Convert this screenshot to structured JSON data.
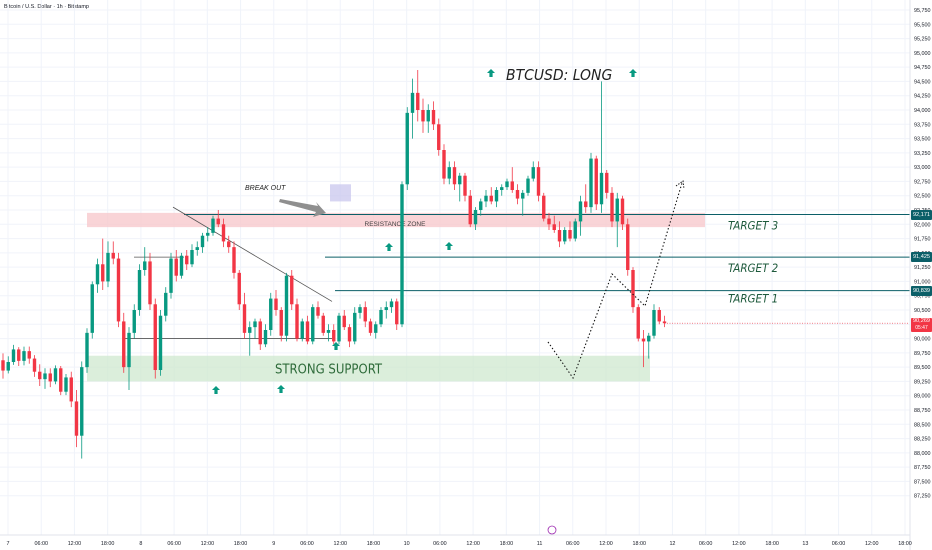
{
  "header": {
    "symbol_line": "Bitcoin / U.S. Dollar · 1h · Bitstamp"
  },
  "colors": {
    "up": "#089981",
    "down": "#f23645",
    "grid": "#f0f3fa",
    "axis_text": "#131722",
    "line": "#0b5f68",
    "support": "#cfe8cf",
    "resistance": "#f7c9cd"
  },
  "chart_data": {
    "type": "candlestick",
    "title": "BTCUSD: LONG",
    "ylim": [
      87000,
      95750
    ],
    "x_tick_labels": [
      "7",
      "06:00",
      "12:00",
      "18:00",
      "8",
      "06:00",
      "12:00",
      "18:00",
      "9",
      "06:00",
      "12:00",
      "18:00",
      "10",
      "06:00",
      "12:00",
      "18:00",
      "11",
      "06:00",
      "12:00",
      "18:00",
      "12",
      "06:00",
      "12:00",
      "18:00",
      "13",
      "06:00",
      "12:00",
      "18:00"
    ],
    "y_tick_values": [
      87250,
      87500,
      87750,
      88000,
      88250,
      88500,
      88750,
      89000,
      89250,
      89500,
      89750,
      90000,
      90250,
      90500,
      90750,
      91000,
      91250,
      91500,
      91750,
      92000,
      92250,
      92500,
      92750,
      93000,
      93250,
      93500,
      93750,
      94000,
      94250,
      94500,
      94750,
      95000,
      95250,
      95500,
      95750
    ],
    "y_tick_labels": [
      "87,250",
      "87,500",
      "87,750",
      "88,000",
      "88,250",
      "88,500",
      "88,750",
      "89,000",
      "89,250",
      "89,500",
      "89,750",
      "90,000",
      "90,250",
      "90,500",
      "90,750",
      "91,000",
      "91,250",
      "91,500",
      "91,750",
      "92,000",
      "92,250",
      "92,500",
      "92,750",
      "93,000",
      "93,250",
      "93,500",
      "93,750",
      "94,000",
      "94,250",
      "94,500",
      "94,750",
      "95,000",
      "95,250",
      "95,500",
      "95,750"
    ],
    "target_levels": [
      {
        "label": "TARGET 3",
        "price": 92171,
        "tag": "92,171"
      },
      {
        "label": "TARGET 2",
        "price": 91425,
        "tag": "91,425"
      },
      {
        "label": "TARGET 1",
        "price": 90839,
        "tag": "90,839"
      }
    ],
    "current_price": {
      "price": 90269,
      "tag": "90,269",
      "countdown": "05:47"
    },
    "zones": [
      {
        "label": "STRONG SUPPORT",
        "from": 89250,
        "to": 89700,
        "x_from": 0,
        "x_to": 189
      },
      {
        "label": "RESISTANCE ZONE",
        "from": 91950,
        "to": 92200,
        "x_from": 0,
        "x_to": 203
      }
    ],
    "annotations": {
      "breakout": "BREAK OUT"
    },
    "candles": [
      [
        89620,
        89740,
        89300,
        89440
      ],
      [
        89440,
        89690,
        89390,
        89590
      ],
      [
        89590,
        89890,
        89540,
        89810
      ],
      [
        89810,
        89850,
        89520,
        89610
      ],
      [
        89610,
        89860,
        89530,
        89780
      ],
      [
        89780,
        89860,
        89560,
        89650
      ],
      [
        89650,
        89710,
        89330,
        89420
      ],
      [
        89420,
        89550,
        89170,
        89290
      ],
      [
        89290,
        89480,
        89120,
        89390
      ],
      [
        89390,
        89480,
        89150,
        89250
      ],
      [
        89250,
        89530,
        89200,
        89480
      ],
      [
        89480,
        89520,
        89010,
        89070
      ],
      [
        89070,
        89380,
        89010,
        89320
      ],
      [
        89320,
        89420,
        88800,
        88900
      ],
      [
        88900,
        89100,
        88100,
        88300
      ],
      [
        88300,
        89600,
        87900,
        89500
      ],
      [
        89500,
        90180,
        89400,
        90100
      ],
      [
        90100,
        91000,
        90000,
        90950
      ],
      [
        90950,
        91400,
        90800,
        91300
      ],
      [
        91300,
        91750,
        90850,
        91000
      ],
      [
        91000,
        91700,
        90900,
        91500
      ],
      [
        91500,
        91700,
        91300,
        91400
      ],
      [
        91400,
        91500,
        90200,
        90300
      ],
      [
        90300,
        90450,
        89400,
        89500
      ],
      [
        89500,
        90200,
        89100,
        90100
      ],
      [
        90100,
        90600,
        90000,
        90500
      ],
      [
        90500,
        91300,
        90400,
        91200
      ],
      [
        91200,
        91600,
        91100,
        91350
      ],
      [
        91350,
        91500,
        90500,
        90600
      ],
      [
        90600,
        90700,
        89300,
        89450
      ],
      [
        89450,
        90500,
        89350,
        90400
      ],
      [
        90400,
        90900,
        90300,
        90800
      ],
      [
        90800,
        91500,
        90700,
        91400
      ],
      [
        91400,
        91550,
        91000,
        91100
      ],
      [
        91100,
        91500,
        91050,
        91450
      ],
      [
        91450,
        91550,
        91200,
        91300
      ],
      [
        91300,
        91650,
        91250,
        91550
      ],
      [
        91550,
        91700,
        91450,
        91600
      ],
      [
        91600,
        91850,
        91500,
        91800
      ],
      [
        91800,
        91950,
        91700,
        91850
      ],
      [
        91850,
        92150,
        91800,
        92100
      ],
      [
        92100,
        92250,
        91950,
        92000
      ],
      [
        92000,
        92100,
        91600,
        91700
      ],
      [
        91700,
        91800,
        91500,
        91600
      ],
      [
        91600,
        91700,
        91050,
        91150
      ],
      [
        91150,
        91200,
        90500,
        90600
      ],
      [
        90600,
        90800,
        90000,
        90100
      ],
      [
        90100,
        90300,
        89700,
        90200
      ],
      [
        90200,
        90350,
        90000,
        90300
      ],
      [
        90300,
        90350,
        89800,
        89900
      ],
      [
        89900,
        90250,
        89850,
        90150
      ],
      [
        90150,
        90800,
        90050,
        90700
      ],
      [
        90700,
        90850,
        90400,
        90500
      ],
      [
        90500,
        90550,
        89950,
        90050
      ],
      [
        90050,
        91150,
        89950,
        91100
      ],
      [
        91100,
        91200,
        90500,
        90600
      ],
      [
        90600,
        90700,
        89950,
        90000
      ],
      [
        90000,
        90350,
        89950,
        90300
      ],
      [
        90300,
        90400,
        89900,
        89950
      ],
      [
        89950,
        90600,
        89900,
        90550
      ],
      [
        90550,
        90650,
        90350,
        90400
      ],
      [
        90400,
        90450,
        90050,
        90100
      ],
      [
        90100,
        90250,
        89950,
        90150
      ],
      [
        90150,
        90250,
        89900,
        89950
      ],
      [
        89950,
        90450,
        89900,
        90400
      ],
      [
        90400,
        90500,
        90150,
        90200
      ],
      [
        90200,
        90250,
        89850,
        89950
      ],
      [
        89950,
        90550,
        89900,
        90450
      ],
      [
        90450,
        90600,
        90350,
        90550
      ],
      [
        90550,
        90650,
        90200,
        90300
      ],
      [
        90300,
        90350,
        90050,
        90100
      ],
      [
        90100,
        90300,
        90000,
        90250
      ],
      [
        90250,
        90550,
        90200,
        90500
      ],
      [
        90500,
        90650,
        90350,
        90550
      ],
      [
        90550,
        90700,
        90450,
        90650
      ],
      [
        90650,
        90700,
        90150,
        90250
      ],
      [
        90250,
        92750,
        90200,
        92700
      ],
      [
        92700,
        94050,
        92600,
        93950
      ],
      [
        93950,
        94550,
        93500,
        94300
      ],
      [
        94300,
        94700,
        93800,
        94000
      ],
      [
        94000,
        94200,
        93600,
        93800
      ],
      [
        93800,
        94100,
        93600,
        94000
      ],
      [
        94000,
        94150,
        93650,
        93750
      ],
      [
        93750,
        93850,
        93200,
        93300
      ],
      [
        93300,
        93400,
        92700,
        92800
      ],
      [
        92800,
        93100,
        92700,
        93000
      ],
      [
        93000,
        93100,
        92600,
        92700
      ],
      [
        92700,
        92900,
        92400,
        92850
      ],
      [
        92850,
        92900,
        92400,
        92500
      ],
      [
        92500,
        92600,
        91950,
        92000
      ],
      [
        92000,
        92300,
        91900,
        92250
      ],
      [
        92250,
        92450,
        92150,
        92400
      ],
      [
        92400,
        92600,
        92300,
        92500
      ],
      [
        92500,
        92650,
        92350,
        92400
      ],
      [
        92400,
        92650,
        92300,
        92600
      ],
      [
        92600,
        92700,
        92500,
        92650
      ],
      [
        92650,
        92800,
        92600,
        92750
      ],
      [
        92750,
        93000,
        92550,
        92600
      ],
      [
        92600,
        92700,
        92350,
        92450
      ],
      [
        92450,
        92600,
        92150,
        92550
      ],
      [
        92550,
        92850,
        92500,
        92800
      ],
      [
        92800,
        93100,
        92750,
        93000
      ],
      [
        93000,
        93100,
        92400,
        92500
      ],
      [
        92500,
        92550,
        92050,
        92100
      ],
      [
        92100,
        92200,
        91900,
        92000
      ],
      [
        92000,
        92150,
        91850,
        91900
      ],
      [
        91900,
        92050,
        91600,
        91700
      ],
      [
        91700,
        91950,
        91650,
        91900
      ],
      [
        91900,
        92050,
        91700,
        91750
      ],
      [
        91750,
        92100,
        91700,
        92050
      ],
      [
        92050,
        92500,
        91800,
        92400
      ],
      [
        92400,
        92700,
        92200,
        92300
      ],
      [
        92300,
        93250,
        92200,
        93150
      ],
      [
        93150,
        93200,
        92250,
        92350
      ],
      [
        92350,
        94500,
        92200,
        92900
      ],
      [
        92900,
        92950,
        92450,
        92550
      ],
      [
        92550,
        92650,
        91950,
        92050
      ],
      [
        92050,
        92550,
        91600,
        92450
      ],
      [
        92450,
        92500,
        91900,
        92000
      ],
      [
        92000,
        92100,
        91100,
        91200
      ],
      [
        91200,
        91250,
        90450,
        90550
      ],
      [
        90550,
        90600,
        89950,
        90000
      ],
      [
        90000,
        90150,
        89500,
        89950
      ],
      [
        89950,
        90100,
        89650,
        90050
      ],
      [
        90050,
        90600,
        90000,
        90500
      ],
      [
        90500,
        90550,
        90250,
        90300
      ],
      [
        90300,
        90400,
        90200,
        90269
      ]
    ]
  }
}
